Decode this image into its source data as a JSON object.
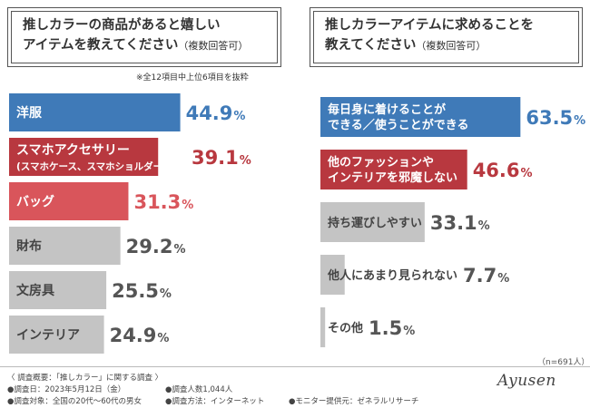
{
  "chart_data": [
    {
      "type": "bar",
      "orientation": "horizontal",
      "title": "推しカラーの商品があると嬉しいアイテムを教えてください",
      "title_line1": "推しカラーの商品があると嬉しい",
      "title_line2": "アイテムを教えてください",
      "title_note": "（複数回答可）",
      "note": "※全12項目中上位6項目を抜粋",
      "unit": "%",
      "xlim": [
        0,
        100
      ],
      "categories": [
        "洋服",
        "スマホアクセサリー\n(スマホケース、スマホショルダーなど)",
        "バッグ",
        "財布",
        "文房具",
        "インテリア"
      ],
      "values": [
        44.9,
        39.1,
        31.3,
        29.2,
        25.5,
        24.9
      ],
      "bar_colors": [
        "#3f7ab8",
        "#b8383f",
        "#d9555b",
        "#c4c4c4",
        "#c4c4c4",
        "#c4c4c4"
      ],
      "value_colors": [
        "#3f7ab8",
        "#b8383f",
        "#d9555b",
        "#555555",
        "#555555",
        "#555555"
      ]
    },
    {
      "type": "bar",
      "orientation": "horizontal",
      "title": "推しカラーアイテムに求めることを教えてください",
      "title_line1": "推しカラーアイテムに求めることを",
      "title_line2": "教えてください",
      "title_note": "（複数回答可）",
      "unit": "%",
      "xlim": [
        0,
        100
      ],
      "categories": [
        "毎日身に着けることが\nできる／使うことができる",
        "他のファッションや\nインテリアを邪魔しない",
        "持ち運びしやすい",
        "他人にあまり見られない",
        "その他"
      ],
      "values": [
        63.5,
        46.6,
        33.1,
        7.7,
        1.5
      ],
      "bar_colors": [
        "#3f7ab8",
        "#b8383f",
        "#c4c4c4",
        "#c4c4c4",
        "#c4c4c4"
      ],
      "value_colors": [
        "#3f7ab8",
        "#b8383f",
        "#555555",
        "#555555",
        "#555555"
      ]
    }
  ],
  "sample_size": "（n=691人）",
  "footer": {
    "survey": "〈 調査概要：「推しカラー」に関する調査 〉",
    "date": "●調査日：2023年5月12日（金）",
    "respondents": "●調査人数1,044人",
    "target": "●調査対象：全国の20代～60代の男女",
    "method": "●調査方法：インターネット",
    "provider": "●モニター提供元：ゼネラルリサーチ"
  },
  "signature": "Ayusen"
}
